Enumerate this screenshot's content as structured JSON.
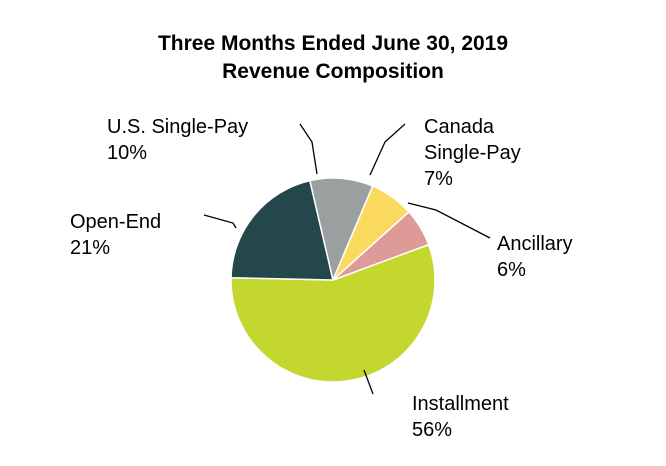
{
  "chart_data": {
    "type": "pie",
    "title": "Three Months Ended June 30, 2019",
    "subtitle": "Revenue Composition",
    "slices": [
      {
        "name": "Installment",
        "label_lines": [
          "Installment"
        ],
        "value": 56,
        "value_label": "56%",
        "color": "#c3d72e"
      },
      {
        "name": "Open-End",
        "label_lines": [
          "Open-End"
        ],
        "value": 21,
        "value_label": "21%",
        "color": "#23474a"
      },
      {
        "name": "U.S. Single-Pay",
        "label_lines": [
          "U.S. Single-Pay"
        ],
        "value": 10,
        "value_label": "10%",
        "color": "#9a9fa0"
      },
      {
        "name": "Canada Single-Pay",
        "label_lines": [
          "Canada",
          "Single-Pay"
        ],
        "value": 7,
        "value_label": "7%",
        "color": "#fbd95f"
      },
      {
        "name": "Ancillary",
        "label_lines": [
          "Ancillary"
        ],
        "value": 6,
        "value_label": "6%",
        "color": "#de9a96"
      }
    ]
  }
}
